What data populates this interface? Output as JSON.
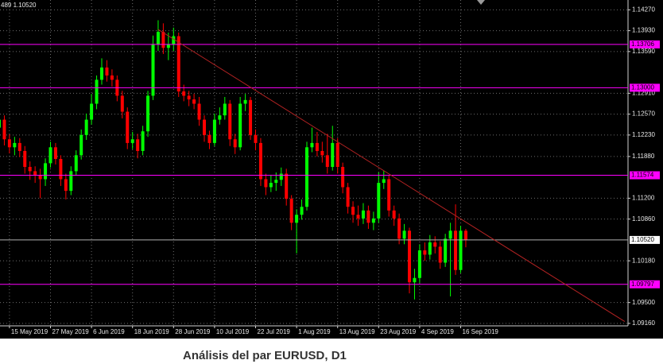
{
  "chart_data": {
    "type": "candlestick",
    "title": "Análisis del par EURUSD, D1",
    "header": "489 1.10520",
    "categories": [
      null,
      null,
      "15 May 2019",
      null,
      null,
      null,
      null,
      null,
      null,
      null,
      "27 May 2019",
      null,
      null,
      null,
      null,
      null,
      null,
      null,
      "6 Jun 2019",
      null,
      null,
      null,
      null,
      null,
      null,
      null,
      "18 Jun 2019",
      null,
      null,
      null,
      null,
      null,
      null,
      null,
      "28 Jun 2019",
      null,
      null,
      null,
      null,
      null,
      null,
      null,
      "10 Jul 2019",
      null,
      null,
      null,
      null,
      null,
      null,
      null,
      "22 Jul 2019",
      null,
      null,
      null,
      null,
      null,
      null,
      null,
      "1 Aug 2019",
      null,
      null,
      null,
      null,
      null,
      null,
      null,
      "13 Aug 2019",
      null,
      null,
      null,
      null,
      null,
      null,
      null,
      "23 Aug 2019",
      null,
      null,
      null,
      null,
      null,
      null,
      null,
      "4 Sep 2019",
      null,
      null,
      null,
      null,
      null,
      null,
      null,
      "16 Sep 2019",
      null
    ],
    "open": [
      1.1235,
      1.1248,
      1.1216,
      1.1203,
      1.121,
      1.1197,
      1.1171,
      1.1164,
      1.1158,
      1.1151,
      1.1177,
      1.1203,
      1.1184,
      1.1151,
      1.1132,
      1.1164,
      1.119,
      1.1223,
      1.1248,
      1.1274,
      1.1313,
      1.1333,
      1.132,
      1.1313,
      1.1287,
      1.1261,
      1.121,
      1.1216,
      1.1197,
      1.1229,
      1.1287,
      1.1371,
      1.1391,
      1.1365,
      1.1371,
      1.1384,
      1.1294,
      1.1287,
      1.1281,
      1.1274,
      1.1248,
      1.1223,
      1.121,
      1.1248,
      1.1255,
      1.1274,
      1.1216,
      1.1203,
      1.1274,
      1.128,
      1.1223,
      1.121,
      1.1151,
      1.1138,
      1.1145,
      1.115,
      1.116,
      1.1119,
      1.108,
      1.1093,
      1.1106,
      1.1203,
      1.121,
      1.1197,
      1.119,
      1.1171,
      1.121,
      1.1171,
      1.1138,
      1.1106,
      1.1093,
      1.1087,
      1.11,
      1.108,
      1.1087,
      1.1145,
      1.1151,
      1.11,
      1.1087,
      1.1054,
      1.1067,
      1.0983,
      1.099,
      1.1035,
      1.1028,
      1.1048,
      1.1041,
      1.1015,
      1.1054,
      1.1067,
      1.1003,
      1.1067
    ],
    "high": [
      1.126,
      1.1255,
      1.1224,
      1.122,
      1.1218,
      1.1205,
      1.118,
      1.1172,
      1.1168,
      1.1185,
      1.1212,
      1.121,
      1.119,
      1.116,
      1.1172,
      1.1198,
      1.1232,
      1.1258,
      1.129,
      1.132,
      1.1348,
      1.1345,
      1.133,
      1.132,
      1.1295,
      1.1268,
      1.1228,
      1.1225,
      1.1238,
      1.1295,
      1.1385,
      1.141,
      1.1405,
      1.139,
      1.1398,
      1.139,
      1.1305,
      1.1295,
      1.129,
      1.1285,
      1.1255,
      1.123,
      1.1258,
      1.1268,
      1.1285,
      1.128,
      1.1225,
      1.1285,
      1.129,
      1.1285,
      1.1232,
      1.1218,
      1.116,
      1.1158,
      1.1162,
      1.117,
      1.1168,
      1.1125,
      1.1102,
      1.1118,
      1.1212,
      1.1235,
      1.1228,
      1.1212,
      1.1225,
      1.1238,
      1.1218,
      1.1178,
      1.1145,
      1.1115,
      1.1108,
      1.1112,
      1.1108,
      1.1098,
      1.1162,
      1.1165,
      1.1158,
      1.1108,
      1.1095,
      1.1078,
      1.1072,
      1.1005,
      1.1045,
      1.1048,
      1.106,
      1.1058,
      1.105,
      1.1062,
      1.108,
      1.111,
      1.1075,
      1.107
    ],
    "low": [
      1.1225,
      1.1206,
      1.1193,
      1.119,
      1.1187,
      1.116,
      1.115,
      1.1145,
      1.112,
      1.114,
      1.117,
      1.1175,
      1.114,
      1.1118,
      1.1125,
      1.1158,
      1.1183,
      1.1215,
      1.124,
      1.1265,
      1.1305,
      1.131,
      1.1302,
      1.1278,
      1.125,
      1.12,
      1.12,
      1.1185,
      1.119,
      1.122,
      1.128,
      1.136,
      1.1355,
      1.1345,
      1.136,
      1.1285,
      1.1278,
      1.127,
      1.1265,
      1.1238,
      1.1212,
      1.12,
      1.1205,
      1.124,
      1.1248,
      1.1205,
      1.1192,
      1.1198,
      1.1262,
      1.1215,
      1.1198,
      1.114,
      1.1125,
      1.113,
      1.1132,
      1.114,
      1.1108,
      1.1068,
      1.103,
      1.1085,
      1.11,
      1.1195,
      1.1188,
      1.1178,
      1.116,
      1.1165,
      1.116,
      1.1128,
      1.1095,
      1.108,
      1.1075,
      1.1078,
      1.107,
      1.1068,
      1.108,
      1.1135,
      1.109,
      1.1075,
      1.1045,
      1.1045,
      1.0965,
      1.0955,
      1.0982,
      1.1018,
      1.102,
      1.103,
      1.1005,
      1.1008,
      1.096,
      1.0995,
      1.0998,
      1.104
    ],
    "close": [
      1.1248,
      1.1216,
      1.1203,
      1.121,
      1.1197,
      1.1171,
      1.1164,
      1.1158,
      1.1151,
      1.1177,
      1.1203,
      1.1184,
      1.1151,
      1.1132,
      1.1164,
      1.119,
      1.1223,
      1.1248,
      1.1274,
      1.1313,
      1.1333,
      1.132,
      1.1313,
      1.1287,
      1.1261,
      1.121,
      1.1216,
      1.1197,
      1.1229,
      1.1287,
      1.1371,
      1.1391,
      1.1365,
      1.1371,
      1.1384,
      1.1294,
      1.1287,
      1.1281,
      1.1274,
      1.1248,
      1.1223,
      1.121,
      1.1248,
      1.1255,
      1.1274,
      1.1216,
      1.1203,
      1.1274,
      1.128,
      1.1223,
      1.121,
      1.1151,
      1.1138,
      1.1145,
      1.115,
      1.116,
      1.1119,
      1.108,
      1.1093,
      1.1106,
      1.1203,
      1.121,
      1.1197,
      1.119,
      1.1171,
      1.121,
      1.1171,
      1.1138,
      1.1106,
      1.1093,
      1.1087,
      1.11,
      1.108,
      1.1087,
      1.1145,
      1.1151,
      1.11,
      1.1087,
      1.1054,
      1.1067,
      1.0983,
      1.099,
      1.1035,
      1.1028,
      1.1048,
      1.1041,
      1.1015,
      1.1054,
      1.1067,
      1.1003,
      1.1067,
      1.1052
    ],
    "up_color": "#00ff00",
    "down_color": "#ff0000",
    "ylim": [
      1.0912,
      1.1443
    ],
    "yticks": [
      {
        "value": 1.1427,
        "label": "1.14270"
      },
      {
        "value": 1.1393,
        "label": "1.13930"
      },
      {
        "value": 1.1359,
        "label": "1.13590"
      },
      {
        "value": 1.1291,
        "label": "1.12910"
      },
      {
        "value": 1.1257,
        "label": "1.12570"
      },
      {
        "value": 1.1223,
        "label": "1.12230"
      },
      {
        "value": 1.1188,
        "label": "1.11880"
      },
      {
        "value": 1.112,
        "label": "1.11200"
      },
      {
        "value": 1.1086,
        "label": "1.10860"
      },
      {
        "value": 1.1018,
        "label": "1.10180"
      },
      {
        "value": 1.095,
        "label": "1.09500"
      },
      {
        "value": 1.0916,
        "label": "1.09160"
      }
    ],
    "grid": true,
    "levels": [
      {
        "value": 1.13706,
        "label": "1.13706"
      },
      {
        "value": 1.13,
        "label": "1.13000"
      },
      {
        "value": 1.11574,
        "label": "1.11574"
      },
      {
        "value": 1.09797,
        "label": "1.09797"
      }
    ],
    "level_color": "#ff00ff",
    "current_price": {
      "value": 1.1052,
      "label": "1.10520"
    },
    "trendline": {
      "x": [
        31,
        122
      ],
      "y": [
        1.1395,
        1.0919
      ]
    },
    "trend_color": "#b22222"
  }
}
